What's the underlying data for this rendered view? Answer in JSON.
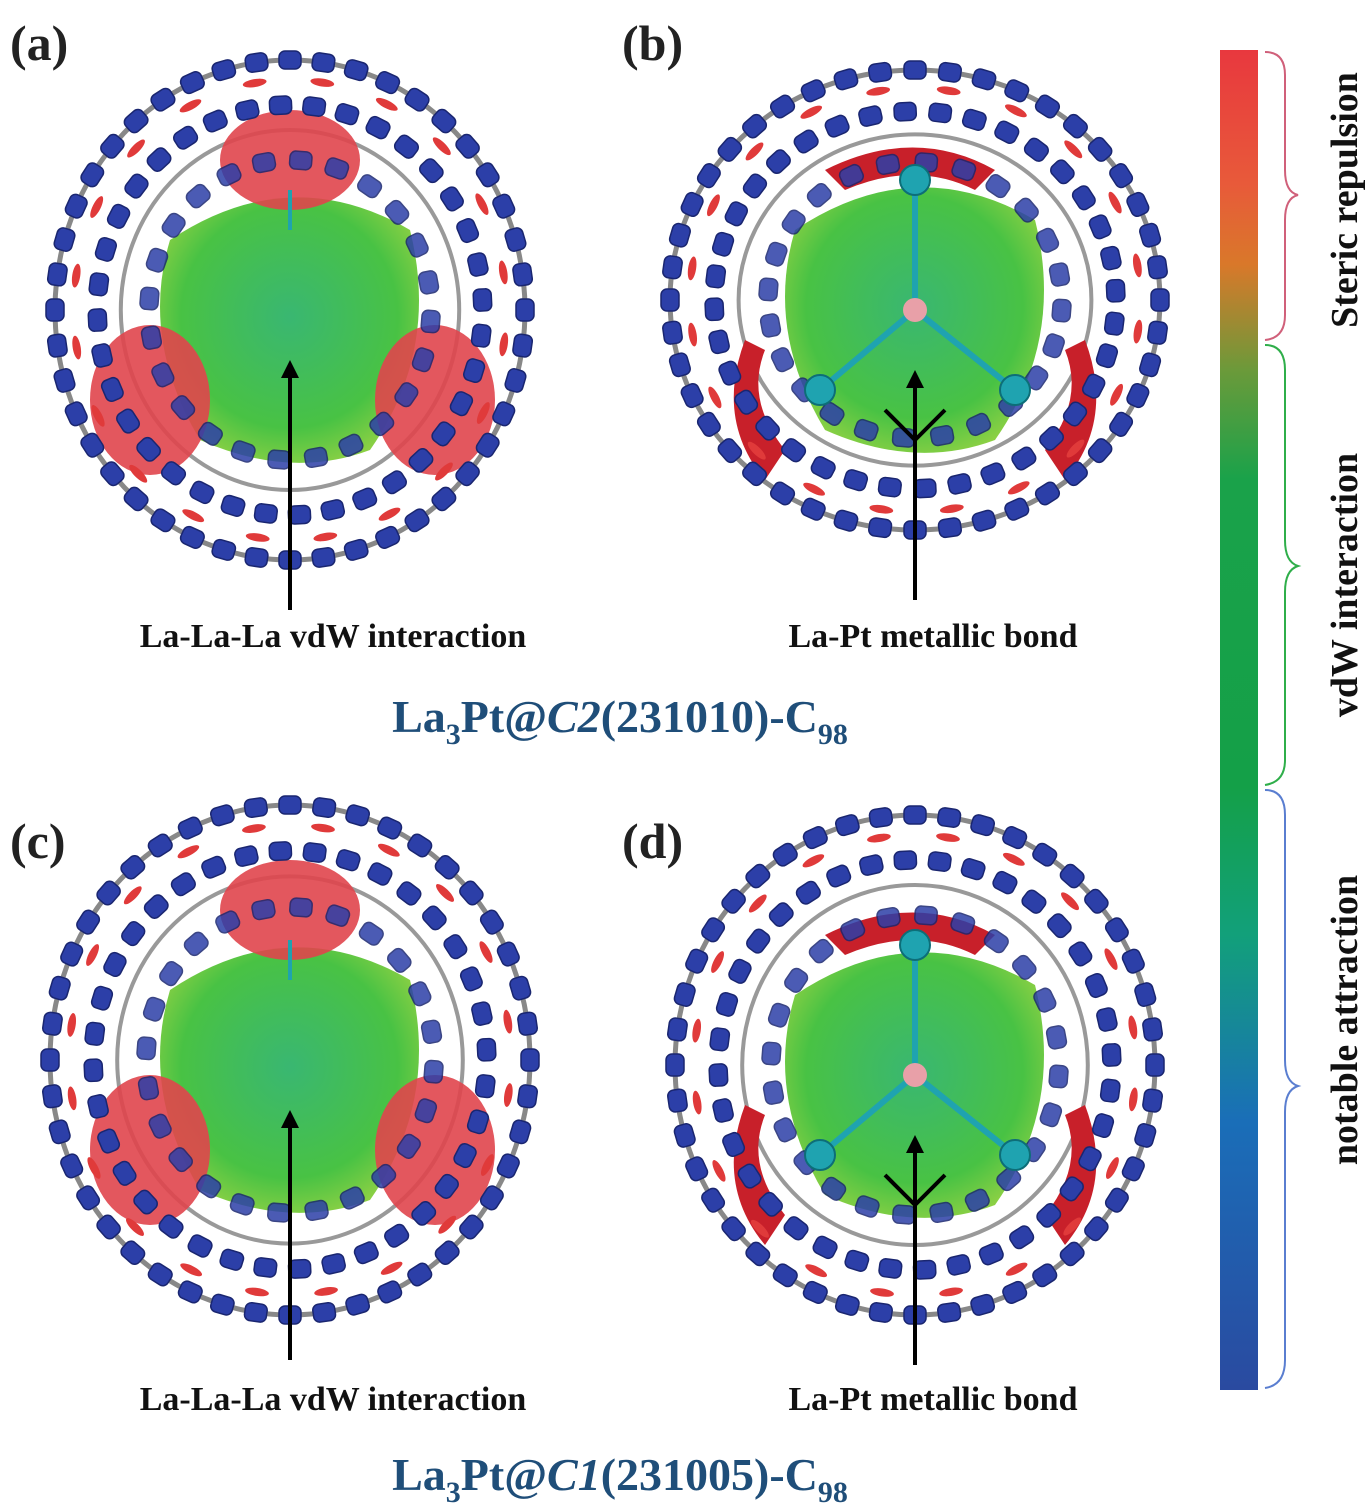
{
  "panels": [
    {
      "label": "(a)",
      "annotation": "La-La-La vdW interaction"
    },
    {
      "label": "(b)",
      "annotation": "La-Pt metallic bond"
    },
    {
      "label": "(c)",
      "annotation": "La-La-La vdW interaction"
    },
    {
      "label": "(d)",
      "annotation": "La-Pt metallic bond"
    }
  ],
  "titles": [
    {
      "parts": [
        "La",
        "3",
        "Pt@",
        "C2",
        "(231010)-C",
        "98"
      ]
    },
    {
      "parts": [
        "La",
        "3",
        "Pt@",
        "C1",
        "(231005)-C",
        "98"
      ]
    }
  ],
  "colorbar": {
    "labels": [
      "Steric repulsion",
      "vdW interaction",
      "notable attraction"
    ]
  }
}
